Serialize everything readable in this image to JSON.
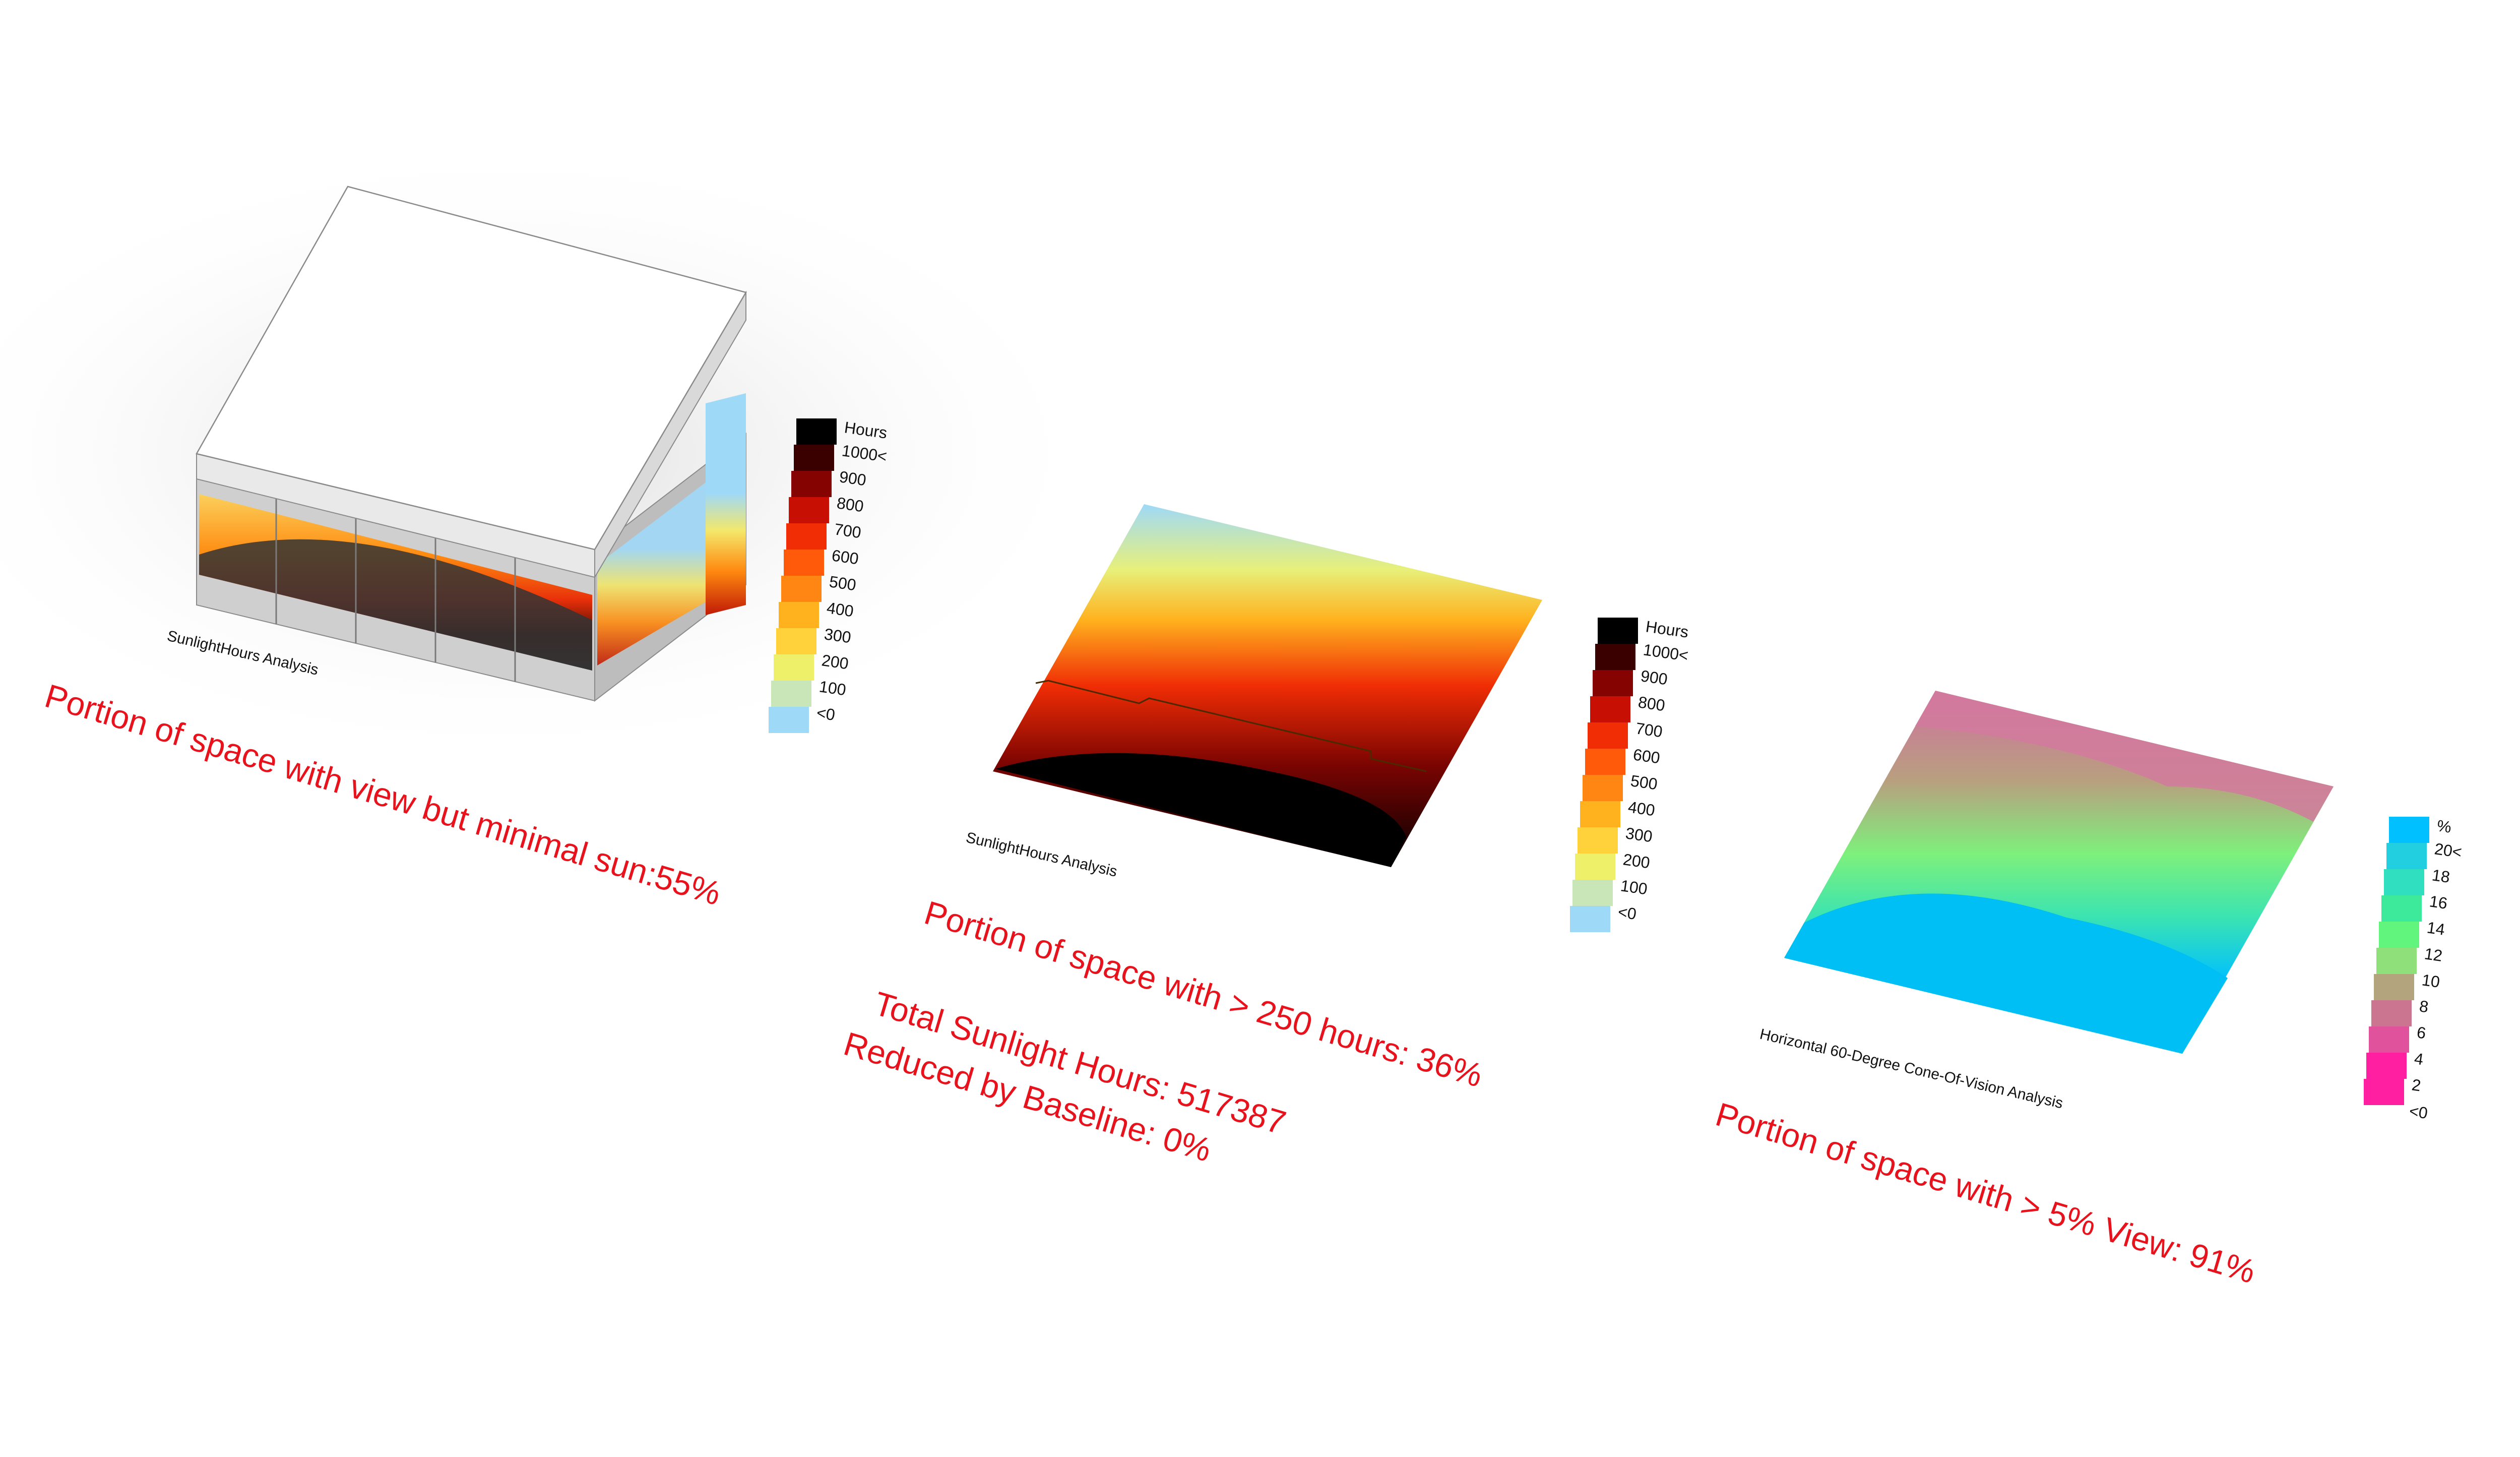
{
  "colors": {
    "stat_text": "#e8121c",
    "sun_scale": [
      "#9fd9f8",
      "#c9e6b8",
      "#eef06a",
      "#ffd23c",
      "#ffb11e",
      "#ff8612",
      "#ff5a09",
      "#f02d05",
      "#c80f03",
      "#850402",
      "#3a0000",
      "#000000"
    ],
    "view_scale": [
      "#ff1fa0",
      "#e0529c",
      "#cc7591",
      "#b3a47e",
      "#8fe07a",
      "#62f57d",
      "#3dea9c",
      "#2fdfc0",
      "#22cfe0",
      "#00c0ff"
    ],
    "box_top": "#ffffff",
    "box_side": "#c4c4c4"
  },
  "sunlight_legend_1": {
    "title": "Hours",
    "labels": [
      "1000<",
      "900",
      "800",
      "700",
      "600",
      "500",
      "400",
      "300",
      "200",
      "100",
      "<0"
    ]
  },
  "sunlight_legend_2": {
    "title": "Hours",
    "labels": [
      "1000<",
      "900",
      "800",
      "700",
      "600",
      "500",
      "400",
      "300",
      "200",
      "100",
      "<0"
    ]
  },
  "view_legend": {
    "title": "%",
    "labels": [
      "20<",
      "18",
      "16",
      "14",
      "12",
      "10",
      "8",
      "6",
      "4",
      "2",
      "<0"
    ]
  },
  "captions": {
    "panel1": "SunlightHours Analysis",
    "panel2": "SunlightHours Analysis",
    "panel3": "Horizontal 60-Degree Cone-Of-Vision Analysis"
  },
  "stats": {
    "view_minimal_sun": "Portion of space with view but minimal sun:55%",
    "over_250_hours": "Portion of space with > 250 hours: 36%",
    "total_sunlight": "Total Sunlight Hours: 517387",
    "reduced_by_baseline": "Reduced by Baseline: 0%",
    "over_5_view": "Portion of space with > 5% View: 91%"
  }
}
